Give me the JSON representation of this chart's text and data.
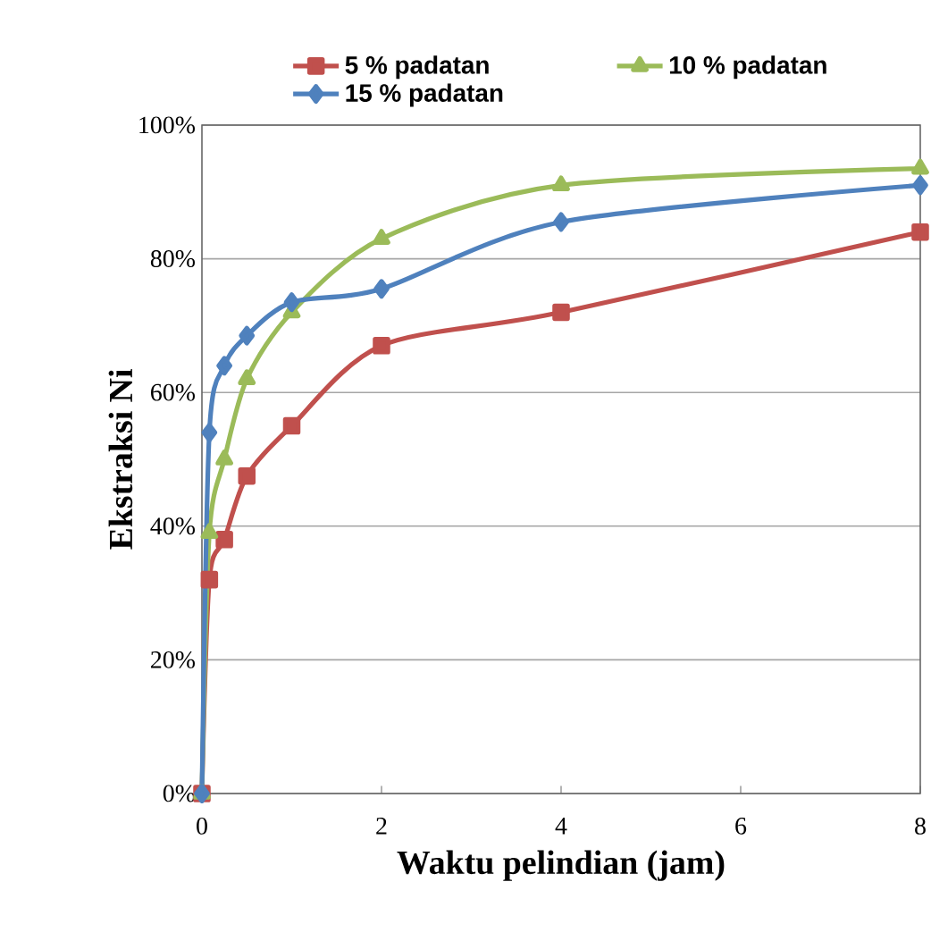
{
  "chart_data": {
    "type": "line",
    "xlabel": "Waktu pelindian (jam)",
    "ylabel": "Ekstraksi Ni",
    "xlim": [
      0,
      8
    ],
    "xticks": [
      0,
      2,
      4,
      6,
      8
    ],
    "ylim": [
      0,
      100
    ],
    "yticks": [
      {
        "value": 0,
        "label": "0%"
      },
      {
        "value": 20,
        "label": "20%"
      },
      {
        "value": 40,
        "label": "40%"
      },
      {
        "value": 60,
        "label": "60%"
      },
      {
        "value": 80,
        "label": "80%"
      },
      {
        "value": 100,
        "label": "100%"
      }
    ],
    "grid": "y",
    "legend": "top",
    "series": [
      {
        "name": "5 % padatan",
        "color": "#c0504d",
        "marker": "square",
        "x": [
          0,
          0.083,
          0.25,
          0.5,
          1,
          2,
          4,
          8
        ],
        "values": [
          0,
          32,
          38,
          47.5,
          55,
          67,
          72,
          84
        ]
      },
      {
        "name": "10 % padatan",
        "color": "#9bbb59",
        "marker": "triangle",
        "x": [
          0,
          0.083,
          0.25,
          0.5,
          1,
          2,
          4,
          8
        ],
        "values": [
          0,
          39,
          50,
          62,
          72,
          83,
          91,
          93.5
        ]
      },
      {
        "name": "15 % padatan",
        "color": "#4f81bd",
        "marker": "diamond",
        "x": [
          0,
          0.083,
          0.25,
          0.5,
          1,
          2,
          4,
          8
        ],
        "values": [
          0,
          54,
          64,
          68.5,
          73.5,
          75.5,
          85.5,
          91
        ]
      }
    ]
  }
}
